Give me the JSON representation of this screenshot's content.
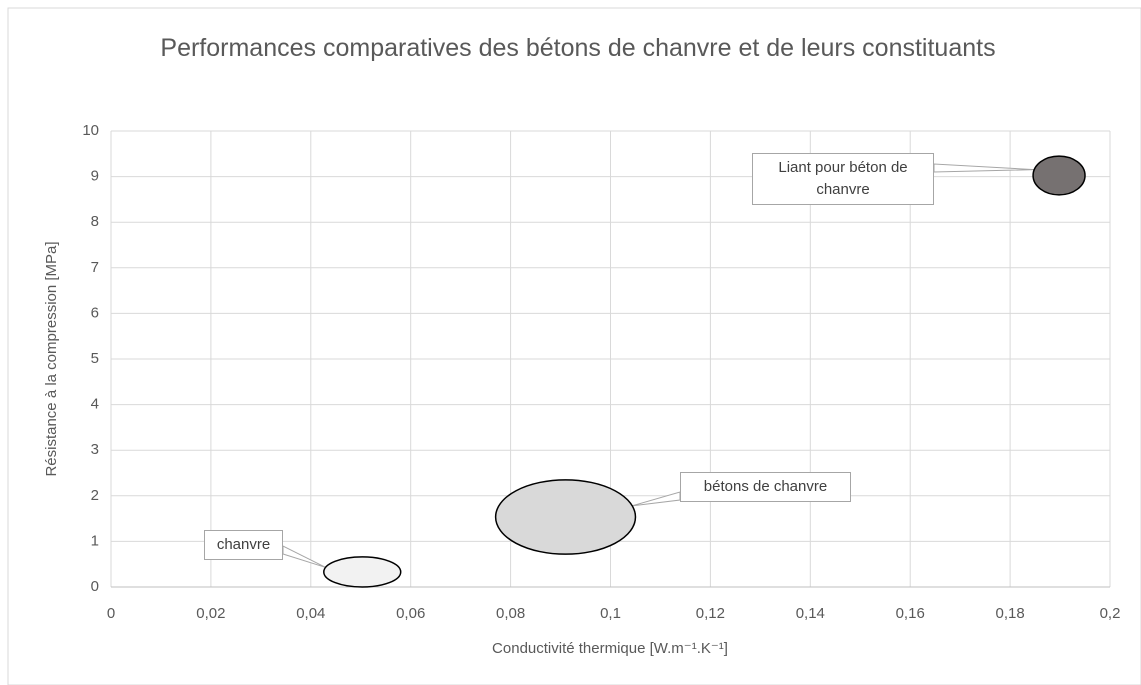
{
  "chart_data": {
    "type": "ellipse",
    "title": "Performances comparatives des bétons de chanvre et de leurs constituants",
    "xlabel": "Conductivité thermique [W.m⁻¹.K⁻¹]",
    "ylabel": "Résistance à la compression [MPa]",
    "xlim": [
      0,
      0.2
    ],
    "xticks": [
      0,
      {
        "value": 0.02,
        "label": "0,02"
      },
      {
        "value": 0.04,
        "label": "0,04"
      },
      {
        "value": 0.06,
        "label": "0,06"
      },
      {
        "value": 0.08,
        "label": "0,08"
      },
      {
        "value": 0.1,
        "label": "0,1"
      },
      {
        "value": 0.12,
        "label": "0,12"
      },
      {
        "value": 0.14,
        "label": "0,14"
      },
      {
        "value": 0.16,
        "label": "0,16"
      },
      {
        "value": 0.18,
        "label": "0,18"
      },
      {
        "value": 0.2,
        "label": "0,2"
      }
    ],
    "ylim": [
      0,
      10
    ],
    "yticks": [
      0,
      1,
      2,
      3,
      4,
      5,
      6,
      7,
      8,
      9,
      10
    ],
    "grid": true,
    "series": [
      {
        "name": "chanvre",
        "color": "#f2f2f2",
        "x": [
          0.0426,
          0.058
        ],
        "y": [
          0,
          0.66
        ]
      },
      {
        "name": "bétons de chanvre",
        "color": "#d9d9d9",
        "x": [
          0.077,
          0.105
        ],
        "y": [
          0.72,
          2.35
        ]
      },
      {
        "name": "Liant pour béton de chanvre",
        "color": "#767171",
        "x": [
          0.1846,
          0.195
        ],
        "y": [
          8.6,
          9.45
        ]
      }
    ]
  }
}
